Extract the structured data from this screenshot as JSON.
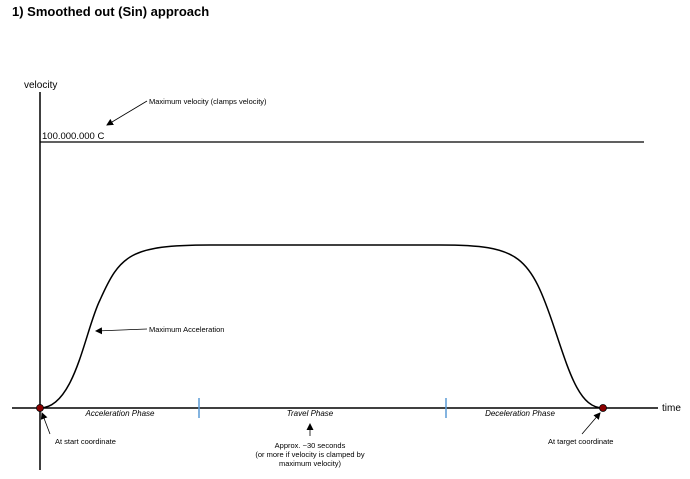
{
  "title": "1) Smoothed out (Sin) approach",
  "axes": {
    "y_label": "velocity",
    "x_label": "time"
  },
  "max_velocity": {
    "value_label": "100.000.000 C",
    "annotation": "Maximum velocity (clamps velocity)"
  },
  "curve_annotation": "Maximum Acceleration",
  "phases": [
    {
      "label": "Acceleration Phase"
    },
    {
      "label": "Travel Phase"
    },
    {
      "label": "Deceleration Phase"
    }
  ],
  "start_label": "At start coordinate",
  "target_label": "At target coordinate",
  "travel_note": {
    "line1": "Approx. ~30 seconds",
    "line2": "(or more if velocity is clamped by",
    "line3": "maximum velocity)"
  },
  "colors": {
    "axis": "#000000",
    "curve": "#000000",
    "phase_divider": "#5b9bd5",
    "point": "#8b0000"
  }
}
